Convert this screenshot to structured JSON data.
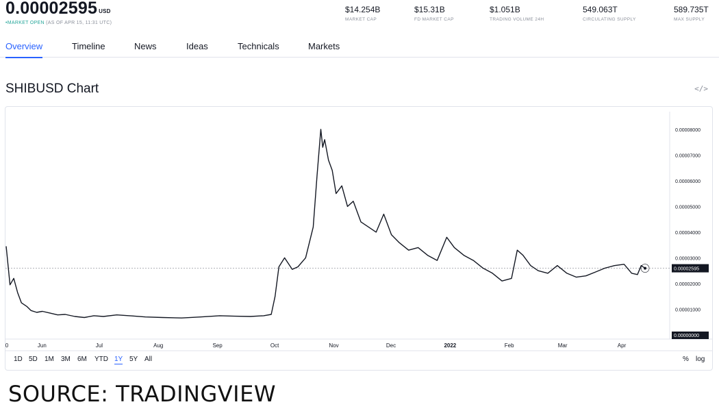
{
  "header": {
    "price": "0.00002595",
    "currency": "USD",
    "status_dot": "•",
    "status_open": "MARKET OPEN",
    "status_time": "(AS OF APR 15, 11:31 UTC)"
  },
  "stats": [
    {
      "value": "$14.254B",
      "label": "MARKET CAP"
    },
    {
      "value": "$15.31B",
      "label": "FD MARKET CAP"
    },
    {
      "value": "$1.051B",
      "label": "TRADING VOLUME 24H"
    },
    {
      "value": "549.063T",
      "label": "CIRCULATING SUPPLY"
    },
    {
      "value": "589.735T",
      "label": "MAX SUPPLY"
    }
  ],
  "tabs": [
    {
      "label": "Overview",
      "active": true
    },
    {
      "label": "Timeline"
    },
    {
      "label": "News"
    },
    {
      "label": "Ideas"
    },
    {
      "label": "Technicals"
    },
    {
      "label": "Markets"
    }
  ],
  "chart": {
    "title": "SHIBUSD Chart",
    "embed_icon": "code-embed-icon",
    "embed_glyph": "</>"
  },
  "ranges": [
    {
      "label": "1D"
    },
    {
      "label": "5D"
    },
    {
      "label": "1M"
    },
    {
      "label": "3M"
    },
    {
      "label": "6M"
    },
    {
      "label": "YTD"
    },
    {
      "label": "1Y",
      "active": true
    },
    {
      "label": "5Y"
    },
    {
      "label": "All"
    }
  ],
  "scale_options": {
    "percent": "%",
    "log": "log"
  },
  "source": "SOURCE: TRADINGVIEW",
  "chart_data": {
    "type": "line",
    "title": "SHIBUSD Chart",
    "xlabel": "",
    "ylabel": "",
    "x_tick_labels": [
      "0",
      "Jun",
      "Jul",
      "Aug",
      "Sep",
      "Oct",
      "Nov",
      "Dec",
      "2022",
      "Feb",
      "Mar",
      "Apr"
    ],
    "y_tick_labels": [
      "0.00000000",
      "0.00001000",
      "0.00002000",
      "0.00003000",
      "0.00004000",
      "0.00005000",
      "0.00006000",
      "0.00007000",
      "0.00008000"
    ],
    "ylim": [
      0,
      8.5e-05
    ],
    "last_value_label": "0.00002595",
    "last_value": 2.595e-05,
    "grid": false,
    "line_color": "#131722",
    "series": [
      {
        "x": [
          "2021-05-15",
          "2021-05-17",
          "2021-05-19",
          "2021-05-21",
          "2021-05-23",
          "2021-05-26",
          "2021-05-28",
          "2021-05-31",
          "2021-06-03",
          "2021-06-07",
          "2021-06-11",
          "2021-06-15",
          "2021-06-20",
          "2021-06-25",
          "2021-06-30",
          "2021-07-05",
          "2021-07-12",
          "2021-07-20",
          "2021-07-27",
          "2021-08-05",
          "2021-08-15",
          "2021-08-25",
          "2021-09-04",
          "2021-09-12",
          "2021-09-20",
          "2021-09-27",
          "2021-10-01",
          "2021-10-03",
          "2021-10-05",
          "2021-10-08",
          "2021-10-12",
          "2021-10-15",
          "2021-10-19",
          "2021-10-23",
          "2021-10-25",
          "2021-10-27",
          "2021-10-28",
          "2021-10-29",
          "2021-10-31",
          "2021-11-02",
          "2021-11-04",
          "2021-11-07",
          "2021-11-10",
          "2021-11-13",
          "2021-11-17",
          "2021-11-21",
          "2021-11-25",
          "2021-11-29",
          "2021-12-03",
          "2021-12-07",
          "2021-12-12",
          "2021-12-17",
          "2021-12-22",
          "2021-12-27",
          "2022-01-01",
          "2022-01-05",
          "2022-01-10",
          "2022-01-15",
          "2022-01-20",
          "2022-01-25",
          "2022-01-30",
          "2022-02-04",
          "2022-02-07",
          "2022-02-10",
          "2022-02-14",
          "2022-02-18",
          "2022-02-23",
          "2022-02-28",
          "2022-03-05",
          "2022-03-10",
          "2022-03-15",
          "2022-03-20",
          "2022-03-25",
          "2022-03-30",
          "2022-04-04",
          "2022-04-08",
          "2022-04-11",
          "2022-04-13",
          "2022-04-15"
        ],
        "y": [
          3.45e-05,
          1.95e-05,
          2.2e-05,
          1.65e-05,
          1.25e-05,
          1.1e-05,
          9.5e-06,
          8.8e-06,
          9.2e-06,
          8.5e-06,
          7.8e-06,
          8e-06,
          7.2e-06,
          6.8e-06,
          7.5e-06,
          7.2e-06,
          7.8e-06,
          7.4e-06,
          7e-06,
          6.8e-06,
          6.6e-06,
          7e-06,
          7.5e-06,
          7.3e-06,
          7.2e-06,
          7.5e-06,
          8e-06,
          1.5e-05,
          2.65e-05,
          3e-05,
          2.55e-05,
          2.65e-05,
          3e-05,
          4.2e-05,
          6.2e-05,
          8e-05,
          7.3e-05,
          7.6e-05,
          6.8e-05,
          6.4e-05,
          5.5e-05,
          5.8e-05,
          5e-05,
          5.2e-05,
          4.4e-05,
          4.2e-05,
          4e-05,
          4.7e-05,
          3.9e-05,
          3.6e-05,
          3.3e-05,
          3.4e-05,
          3.1e-05,
          2.9e-05,
          3.8e-05,
          3.4e-05,
          3.1e-05,
          2.9e-05,
          2.6e-05,
          2.4e-05,
          2.1e-05,
          2.2e-05,
          3.3e-05,
          3.1e-05,
          2.7e-05,
          2.5e-05,
          2.4e-05,
          2.7e-05,
          2.4e-05,
          2.25e-05,
          2.3e-05,
          2.45e-05,
          2.6e-05,
          2.7e-05,
          2.75e-05,
          2.4e-05,
          2.35e-05,
          2.7e-05,
          2.595e-05
        ]
      }
    ]
  }
}
